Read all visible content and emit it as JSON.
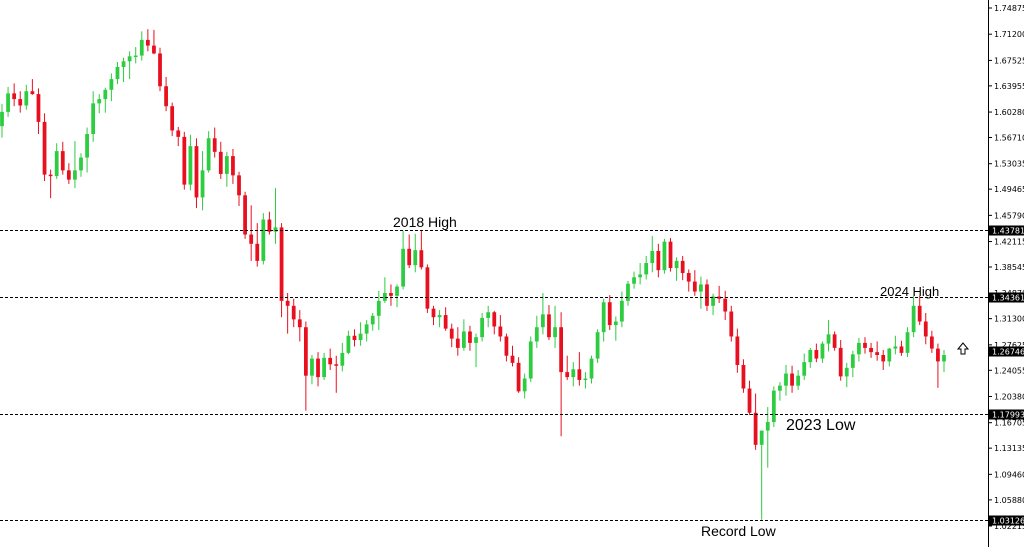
{
  "chart_data": {
    "type": "candlestick",
    "title": "",
    "xlabel": "",
    "ylabel": "",
    "ylim": [
      1.02215,
      1.74875
    ],
    "grid": false,
    "y_ticks": [
      "1.74875",
      "1.71200",
      "1.67525",
      "1.63955",
      "1.60280",
      "1.56710",
      "1.53035",
      "1.49465",
      "1.45790",
      "1.42115",
      "1.38545",
      "1.34870",
      "1.31300",
      "1.27625",
      "1.24055",
      "1.20380",
      "1.16705",
      "1.13135",
      "1.09460",
      "1.05880",
      "1.02215"
    ],
    "levels": [
      {
        "value": 1.43781,
        "label": "1.43781",
        "annotation": "2018 High"
      },
      {
        "value": 1.34361,
        "label": "1.34361",
        "annotation": "2024 High"
      },
      {
        "value": 1.17993,
        "label": "1.17993",
        "annotation": "2023 Low"
      },
      {
        "value": 1.03126,
        "label": "1.03126",
        "annotation": "Record Low"
      }
    ],
    "current_price": {
      "value": 1.26746,
      "label": "1.26746"
    },
    "colors": {
      "up": "#2ecc40",
      "down": "#e8101e",
      "level": "#000000",
      "price_tag": "#000000"
    },
    "candles": [
      [
        1.583,
        1.614,
        1.567,
        1.603
      ],
      [
        1.603,
        1.638,
        1.596,
        1.629
      ],
      [
        1.629,
        1.643,
        1.611,
        1.621
      ],
      [
        1.621,
        1.632,
        1.602,
        1.612
      ],
      [
        1.612,
        1.641,
        1.606,
        1.632
      ],
      [
        1.632,
        1.649,
        1.627,
        1.628
      ],
      [
        1.628,
        1.636,
        1.572,
        1.589
      ],
      [
        1.589,
        1.601,
        1.506,
        1.515
      ],
      [
        1.515,
        1.522,
        1.482,
        1.513
      ],
      [
        1.513,
        1.559,
        1.509,
        1.548
      ],
      [
        1.548,
        1.561,
        1.515,
        1.521
      ],
      [
        1.521,
        1.531,
        1.502,
        1.508
      ],
      [
        1.508,
        1.562,
        1.496,
        1.521
      ],
      [
        1.521,
        1.545,
        1.512,
        1.539
      ],
      [
        1.539,
        1.581,
        1.518,
        1.572
      ],
      [
        1.572,
        1.632,
        1.561,
        1.615
      ],
      [
        1.615,
        1.628,
        1.601,
        1.621
      ],
      [
        1.621,
        1.637,
        1.602,
        1.634
      ],
      [
        1.634,
        1.657,
        1.618,
        1.649
      ],
      [
        1.649,
        1.673,
        1.642,
        1.666
      ],
      [
        1.666,
        1.679,
        1.645,
        1.674
      ],
      [
        1.674,
        1.688,
        1.649,
        1.681
      ],
      [
        1.681,
        1.694,
        1.671,
        1.682
      ],
      [
        1.682,
        1.716,
        1.675,
        1.704
      ],
      [
        1.704,
        1.719,
        1.688,
        1.696
      ],
      [
        1.696,
        1.718,
        1.684,
        1.685
      ],
      [
        1.685,
        1.693,
        1.632,
        1.639
      ],
      [
        1.639,
        1.652,
        1.604,
        1.611
      ],
      [
        1.611,
        1.616,
        1.569,
        1.577
      ],
      [
        1.577,
        1.582,
        1.555,
        1.568
      ],
      [
        1.568,
        1.575,
        1.494,
        1.501
      ],
      [
        1.501,
        1.571,
        1.493,
        1.555
      ],
      [
        1.555,
        1.566,
        1.468,
        1.483
      ],
      [
        1.483,
        1.548,
        1.465,
        1.521
      ],
      [
        1.521,
        1.576,
        1.518,
        1.566
      ],
      [
        1.566,
        1.581,
        1.539,
        1.547
      ],
      [
        1.547,
        1.561,
        1.509,
        1.516
      ],
      [
        1.516,
        1.547,
        1.498,
        1.541
      ],
      [
        1.541,
        1.551,
        1.502,
        1.514
      ],
      [
        1.514,
        1.519,
        1.471,
        1.486
      ],
      [
        1.486,
        1.491,
        1.425,
        1.431
      ],
      [
        1.431,
        1.472,
        1.394,
        1.418
      ],
      [
        1.418,
        1.447,
        1.386,
        1.394
      ],
      [
        1.394,
        1.461,
        1.389,
        1.452
      ],
      [
        1.452,
        1.463,
        1.431,
        1.435
      ],
      [
        1.435,
        1.496,
        1.418,
        1.441
      ],
      [
        1.441,
        1.447,
        1.315,
        1.338
      ],
      [
        1.338,
        1.349,
        1.292,
        1.331
      ],
      [
        1.331,
        1.341,
        1.301,
        1.312
      ],
      [
        1.312,
        1.325,
        1.281,
        1.301
      ],
      [
        1.301,
        1.309,
        1.184,
        1.233
      ],
      [
        1.233,
        1.262,
        1.221,
        1.257
      ],
      [
        1.257,
        1.266,
        1.218,
        1.231
      ],
      [
        1.231,
        1.265,
        1.227,
        1.258
      ],
      [
        1.258,
        1.271,
        1.241,
        1.249
      ],
      [
        1.249,
        1.261,
        1.209,
        1.247
      ],
      [
        1.247,
        1.279,
        1.239,
        1.265
      ],
      [
        1.265,
        1.296,
        1.263,
        1.289
      ],
      [
        1.289,
        1.298,
        1.274,
        1.283
      ],
      [
        1.283,
        1.308,
        1.275,
        1.292
      ],
      [
        1.292,
        1.311,
        1.281,
        1.305
      ],
      [
        1.305,
        1.321,
        1.296,
        1.317
      ],
      [
        1.317,
        1.352,
        1.297,
        1.338
      ],
      [
        1.338,
        1.371,
        1.335,
        1.349
      ],
      [
        1.349,
        1.361,
        1.331,
        1.345
      ],
      [
        1.345,
        1.361,
        1.329,
        1.358
      ],
      [
        1.358,
        1.436,
        1.354,
        1.411
      ],
      [
        1.411,
        1.431,
        1.384,
        1.388
      ],
      [
        1.388,
        1.432,
        1.378,
        1.409
      ],
      [
        1.409,
        1.436,
        1.382,
        1.385
      ],
      [
        1.385,
        1.389,
        1.321,
        1.327
      ],
      [
        1.327,
        1.331,
        1.304,
        1.315
      ],
      [
        1.315,
        1.325,
        1.301,
        1.318
      ],
      [
        1.318,
        1.329,
        1.296,
        1.299
      ],
      [
        1.299,
        1.306,
        1.273,
        1.285
      ],
      [
        1.285,
        1.301,
        1.261,
        1.272
      ],
      [
        1.272,
        1.312,
        1.268,
        1.295
      ],
      [
        1.295,
        1.303,
        1.268,
        1.279
      ],
      [
        1.279,
        1.292,
        1.245,
        1.287
      ],
      [
        1.287,
        1.321,
        1.281,
        1.314
      ],
      [
        1.314,
        1.331,
        1.301,
        1.322
      ],
      [
        1.322,
        1.324,
        1.291,
        1.302
      ],
      [
        1.302,
        1.318,
        1.281,
        1.288
      ],
      [
        1.288,
        1.292,
        1.253,
        1.261
      ],
      [
        1.261,
        1.275,
        1.246,
        1.251
      ],
      [
        1.251,
        1.259,
        1.209,
        1.211
      ],
      [
        1.211,
        1.236,
        1.201,
        1.229
      ],
      [
        1.229,
        1.288,
        1.224,
        1.281
      ],
      [
        1.281,
        1.317,
        1.272,
        1.301
      ],
      [
        1.301,
        1.349,
        1.291,
        1.319
      ],
      [
        1.319,
        1.332,
        1.283,
        1.287
      ],
      [
        1.287,
        1.331,
        1.272,
        1.301
      ],
      [
        1.301,
        1.322,
        1.148,
        1.238
      ],
      [
        1.238,
        1.261,
        1.227,
        1.231
      ],
      [
        1.231,
        1.252,
        1.218,
        1.242
      ],
      [
        1.242,
        1.266,
        1.219,
        1.227
      ],
      [
        1.227,
        1.238,
        1.215,
        1.229
      ],
      [
        1.229,
        1.261,
        1.222,
        1.257
      ],
      [
        1.257,
        1.298,
        1.251,
        1.294
      ],
      [
        1.294,
        1.341,
        1.281,
        1.336
      ],
      [
        1.336,
        1.346,
        1.297,
        1.304
      ],
      [
        1.304,
        1.316,
        1.282,
        1.309
      ],
      [
        1.309,
        1.351,
        1.301,
        1.338
      ],
      [
        1.338,
        1.366,
        1.331,
        1.362
      ],
      [
        1.362,
        1.379,
        1.355,
        1.371
      ],
      [
        1.371,
        1.391,
        1.361,
        1.375
      ],
      [
        1.375,
        1.401,
        1.368,
        1.391
      ],
      [
        1.391,
        1.429,
        1.378,
        1.408
      ],
      [
        1.408,
        1.418,
        1.371,
        1.381
      ],
      [
        1.381,
        1.425,
        1.376,
        1.421
      ],
      [
        1.421,
        1.426,
        1.379,
        1.384
      ],
      [
        1.384,
        1.399,
        1.366,
        1.394
      ],
      [
        1.394,
        1.401,
        1.367,
        1.377
      ],
      [
        1.377,
        1.382,
        1.351,
        1.365
      ],
      [
        1.365,
        1.381,
        1.345,
        1.351
      ],
      [
        1.351,
        1.372,
        1.327,
        1.361
      ],
      [
        1.361,
        1.368,
        1.324,
        1.331
      ],
      [
        1.331,
        1.348,
        1.318,
        1.344
      ],
      [
        1.344,
        1.359,
        1.335,
        1.341
      ],
      [
        1.341,
        1.352,
        1.311,
        1.323
      ],
      [
        1.323,
        1.331,
        1.281,
        1.288
      ],
      [
        1.288,
        1.299,
        1.237,
        1.248
      ],
      [
        1.248,
        1.256,
        1.209,
        1.215
      ],
      [
        1.215,
        1.226,
        1.178,
        1.181
      ],
      [
        1.181,
        1.208,
        1.129,
        1.136
      ],
      [
        1.136,
        1.155,
        1.031,
        1.156
      ],
      [
        1.156,
        1.189,
        1.104,
        1.168
      ],
      [
        1.168,
        1.218,
        1.161,
        1.212
      ],
      [
        1.212,
        1.224,
        1.198,
        1.219
      ],
      [
        1.219,
        1.248,
        1.205,
        1.236
      ],
      [
        1.236,
        1.247,
        1.209,
        1.219
      ],
      [
        1.219,
        1.241,
        1.213,
        1.233
      ],
      [
        1.233,
        1.264,
        1.227,
        1.252
      ],
      [
        1.252,
        1.272,
        1.244,
        1.269
      ],
      [
        1.269,
        1.278,
        1.252,
        1.257
      ],
      [
        1.257,
        1.281,
        1.251,
        1.278
      ],
      [
        1.278,
        1.311,
        1.267,
        1.291
      ],
      [
        1.291,
        1.295,
        1.268,
        1.272
      ],
      [
        1.272,
        1.283,
        1.226,
        1.232
      ],
      [
        1.232,
        1.251,
        1.217,
        1.244
      ],
      [
        1.244,
        1.268,
        1.231,
        1.263
      ],
      [
        1.263,
        1.286,
        1.253,
        1.279
      ],
      [
        1.279,
        1.287,
        1.264,
        1.272
      ],
      [
        1.272,
        1.279,
        1.258,
        1.266
      ],
      [
        1.266,
        1.281,
        1.254,
        1.262
      ],
      [
        1.262,
        1.269,
        1.241,
        1.253
      ],
      [
        1.253,
        1.272,
        1.246,
        1.271
      ],
      [
        1.271,
        1.289,
        1.263,
        1.274
      ],
      [
        1.274,
        1.282,
        1.261,
        1.265
      ],
      [
        1.265,
        1.301,
        1.259,
        1.294
      ],
      [
        1.294,
        1.345,
        1.287,
        1.331
      ],
      [
        1.331,
        1.345,
        1.304,
        1.309
      ],
      [
        1.309,
        1.321,
        1.277,
        1.288
      ],
      [
        1.288,
        1.296,
        1.265,
        1.271
      ],
      [
        1.271,
        1.278,
        1.216,
        1.253
      ],
      [
        1.253,
        1.269,
        1.238,
        1.262
      ]
    ]
  },
  "annotations": {
    "high_2018": "2018 High",
    "high_2024": "2024 High",
    "low_2023": "2023 Low",
    "record_low": "Record Low"
  },
  "icons": {
    "up_arrow": "up-arrow-icon"
  }
}
